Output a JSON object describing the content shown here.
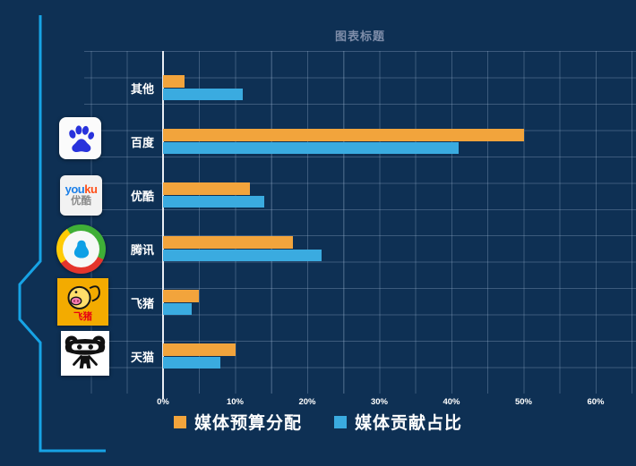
{
  "title": "图表标题",
  "chart_data": {
    "type": "bar",
    "orientation": "horizontal",
    "title": "图表标题",
    "categories": [
      "其他",
      "百度",
      "优酷",
      "腾讯",
      "飞猪",
      "天猫"
    ],
    "series": [
      {
        "name": "媒体预算分配",
        "color": "#F2A43C",
        "values": [
          3,
          50,
          12,
          18,
          5,
          10
        ]
      },
      {
        "name": "媒体贡献占比",
        "color": "#3AABE0",
        "values": [
          11,
          41,
          14,
          22,
          4,
          8
        ]
      }
    ],
    "unit": "%",
    "x_ticks": [
      "0%",
      "10%",
      "20%",
      "30%",
      "40%",
      "50%",
      "60%"
    ],
    "xlim": [
      0,
      60
    ],
    "grid": true,
    "legend_position": "bottom"
  },
  "icons": {
    "baidu": "baidu-paw-icon",
    "youku": {
      "word_blue": "you",
      "word_red": "ku",
      "cn": "优酷"
    },
    "qq": "qq-penguin-icon",
    "fliggy": {
      "label": "飞猪"
    },
    "tmall": "tmall-cat-icon"
  },
  "colors": {
    "background": "#0E3054",
    "accent_line": "#17A3E5",
    "axis": "#E9EDF3",
    "grid": "#A5BCD8",
    "title_text": "#7E8DA9",
    "bar_orange": "#F2A43C",
    "bar_blue": "#3AABE0",
    "fliggy_yellow": "#F3AB00"
  }
}
